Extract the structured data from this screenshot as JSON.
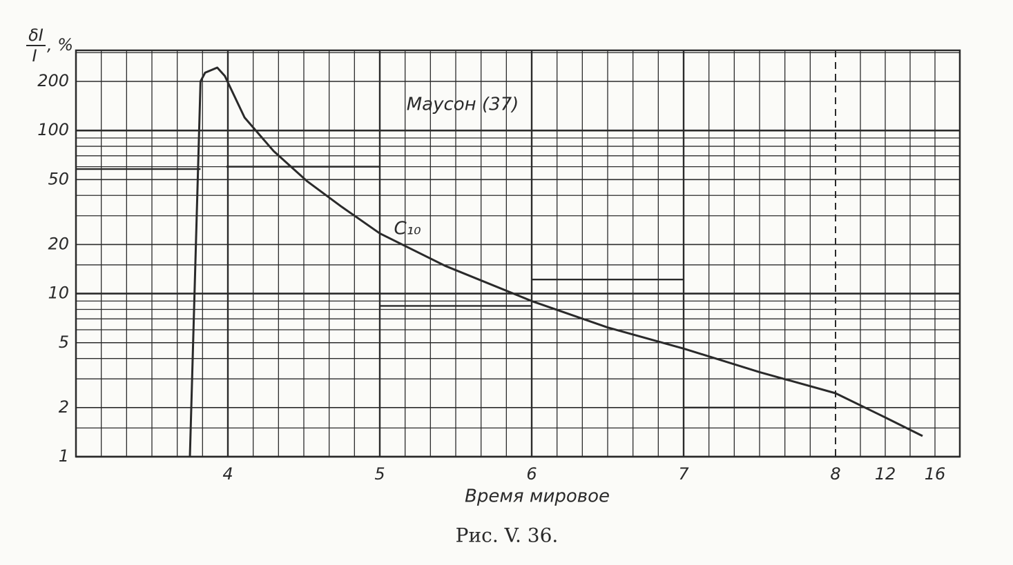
{
  "chart_data": {
    "type": "line",
    "y_label": {
      "numerator": "δI",
      "denominator": "I",
      "unit": ", %"
    },
    "x_label": "Время мировое",
    "caption": "Рис. V. 36.",
    "annotation": "Маусон (37)",
    "log_y": true,
    "grid": true,
    "ylim": [
      1,
      310
    ],
    "yticks": [
      1,
      2,
      5,
      10,
      20,
      50,
      100,
      200
    ],
    "y_minor_grid": [
      1.5,
      3,
      4,
      6,
      7,
      8,
      9,
      15,
      30,
      40,
      60,
      70,
      80,
      90,
      300
    ],
    "xlim": [
      3,
      18
    ],
    "xticks": [
      4,
      5,
      6,
      7,
      8,
      12,
      16
    ],
    "x_minor_per_hour": 6,
    "x_break": 8,
    "x_minor_after_break": [
      10,
      14
    ],
    "color": "#2a2a2a",
    "series": [
      {
        "name": "C₁₀",
        "x": [
          3.75,
          3.82,
          3.85,
          3.93,
          3.98,
          4.11,
          4.3,
          4.52,
          4.75,
          5.0,
          5.43,
          6.0,
          6.5,
          7.0,
          7.5,
          8.0,
          12,
          15
        ],
        "values": [
          1,
          200,
          226,
          243,
          216,
          120,
          75,
          49,
          34,
          23.4,
          14.8,
          9.0,
          6.2,
          4.6,
          3.3,
          2.45,
          1.74,
          1.34
        ]
      }
    ],
    "steps": {
      "x_start": [
        3,
        3.99,
        5,
        6,
        7
      ],
      "x_end": [
        3.82,
        5,
        6,
        7,
        8
      ],
      "values": [
        58,
        60,
        8.4,
        12.2,
        2
      ]
    }
  }
}
